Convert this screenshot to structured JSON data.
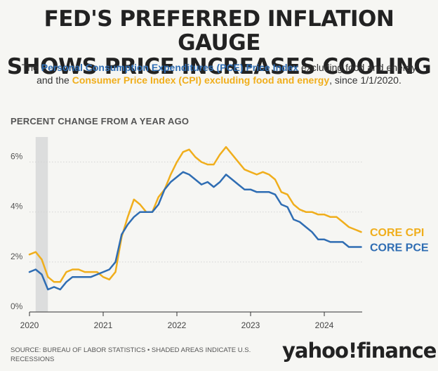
{
  "title": {
    "line1": "FED'S PREFERRED INFLATION GAUGE",
    "line2": "SHOWS PRICE INCREASES COOLING"
  },
  "subtitle": {
    "part1": "The ",
    "pce_name": "Personal Consumption Expenditures (PCE) Price Index",
    "part2": " excluding food and energy and the ",
    "cpi_name": "Consumer Price Index (CPI) excluding food and energy",
    "part3": ", since 1/1/2020."
  },
  "kicker": "PERCENT CHANGE FROM A YEAR AGO",
  "source": "SOURCE: BUREAU OF LABOR STATISTICS • SHADED AREAS INDICATE U.S. RECESSIONS",
  "logo": {
    "word1": "yahoo",
    "bang": "!",
    "word2": "finance"
  },
  "colors": {
    "cpi": "#f0ae1c",
    "pce": "#2f6db3",
    "recession": "#dcdddd",
    "grid": "#d4d4d4"
  },
  "chart_data": {
    "type": "line",
    "ylim": [
      0,
      7
    ],
    "yticks": [
      "0%",
      "2%",
      "4%",
      "6%"
    ],
    "xticks": [
      "2020",
      "2021",
      "2022",
      "2023",
      "2024"
    ],
    "recession": [
      "2020-02",
      "2020-04"
    ],
    "series": [
      {
        "name": "CORE CPI",
        "color": "#f0ae1c",
        "values": [
          [
            "2020-01",
            2.3
          ],
          [
            "2020-02",
            2.4
          ],
          [
            "2020-03",
            2.1
          ],
          [
            "2020-04",
            1.4
          ],
          [
            "2020-05",
            1.2
          ],
          [
            "2020-06",
            1.2
          ],
          [
            "2020-07",
            1.6
          ],
          [
            "2020-08",
            1.7
          ],
          [
            "2020-09",
            1.7
          ],
          [
            "2020-10",
            1.6
          ],
          [
            "2020-11",
            1.6
          ],
          [
            "2020-12",
            1.6
          ],
          [
            "2021-01",
            1.4
          ],
          [
            "2021-02",
            1.3
          ],
          [
            "2021-03",
            1.6
          ],
          [
            "2021-04",
            3.0
          ],
          [
            "2021-05",
            3.8
          ],
          [
            "2021-06",
            4.5
          ],
          [
            "2021-07",
            4.3
          ],
          [
            "2021-08",
            4.0
          ],
          [
            "2021-09",
            4.0
          ],
          [
            "2021-10",
            4.6
          ],
          [
            "2021-11",
            4.9
          ],
          [
            "2021-12",
            5.5
          ],
          [
            "2022-01",
            6.0
          ],
          [
            "2022-02",
            6.4
          ],
          [
            "2022-03",
            6.5
          ],
          [
            "2022-04",
            6.2
          ],
          [
            "2022-05",
            6.0
          ],
          [
            "2022-06",
            5.9
          ],
          [
            "2022-07",
            5.9
          ],
          [
            "2022-08",
            6.3
          ],
          [
            "2022-09",
            6.6
          ],
          [
            "2022-10",
            6.3
          ],
          [
            "2022-11",
            6.0
          ],
          [
            "2022-12",
            5.7
          ],
          [
            "2023-01",
            5.6
          ],
          [
            "2023-02",
            5.5
          ],
          [
            "2023-03",
            5.6
          ],
          [
            "2023-04",
            5.5
          ],
          [
            "2023-05",
            5.3
          ],
          [
            "2023-06",
            4.8
          ],
          [
            "2023-07",
            4.7
          ],
          [
            "2023-08",
            4.3
          ],
          [
            "2023-09",
            4.1
          ],
          [
            "2023-10",
            4.0
          ],
          [
            "2023-11",
            4.0
          ],
          [
            "2023-12",
            3.9
          ],
          [
            "2024-01",
            3.9
          ],
          [
            "2024-02",
            3.8
          ],
          [
            "2024-03",
            3.8
          ],
          [
            "2024-04",
            3.6
          ],
          [
            "2024-05",
            3.4
          ],
          [
            "2024-06",
            3.3
          ],
          [
            "2024-07",
            3.2
          ]
        ]
      },
      {
        "name": "CORE PCE",
        "color": "#2f6db3",
        "values": [
          [
            "2020-01",
            1.6
          ],
          [
            "2020-02",
            1.7
          ],
          [
            "2020-03",
            1.5
          ],
          [
            "2020-04",
            0.9
          ],
          [
            "2020-05",
            1.0
          ],
          [
            "2020-06",
            0.9
          ],
          [
            "2020-07",
            1.2
          ],
          [
            "2020-08",
            1.4
          ],
          [
            "2020-09",
            1.4
          ],
          [
            "2020-10",
            1.4
          ],
          [
            "2020-11",
            1.4
          ],
          [
            "2020-12",
            1.5
          ],
          [
            "2021-01",
            1.6
          ],
          [
            "2021-02",
            1.7
          ],
          [
            "2021-03",
            2.0
          ],
          [
            "2021-04",
            3.1
          ],
          [
            "2021-05",
            3.5
          ],
          [
            "2021-06",
            3.8
          ],
          [
            "2021-07",
            4.0
          ],
          [
            "2021-08",
            4.0
          ],
          [
            "2021-09",
            4.0
          ],
          [
            "2021-10",
            4.3
          ],
          [
            "2021-11",
            4.9
          ],
          [
            "2021-12",
            5.2
          ],
          [
            "2022-01",
            5.4
          ],
          [
            "2022-02",
            5.6
          ],
          [
            "2022-03",
            5.5
          ],
          [
            "2022-04",
            5.3
          ],
          [
            "2022-05",
            5.1
          ],
          [
            "2022-06",
            5.2
          ],
          [
            "2022-07",
            5.0
          ],
          [
            "2022-08",
            5.2
          ],
          [
            "2022-09",
            5.5
          ],
          [
            "2022-10",
            5.3
          ],
          [
            "2022-11",
            5.1
          ],
          [
            "2022-12",
            4.9
          ],
          [
            "2023-01",
            4.9
          ],
          [
            "2023-02",
            4.8
          ],
          [
            "2023-03",
            4.8
          ],
          [
            "2023-04",
            4.8
          ],
          [
            "2023-05",
            4.7
          ],
          [
            "2023-06",
            4.3
          ],
          [
            "2023-07",
            4.2
          ],
          [
            "2023-08",
            3.7
          ],
          [
            "2023-09",
            3.6
          ],
          [
            "2023-10",
            3.4
          ],
          [
            "2023-11",
            3.2
          ],
          [
            "2023-12",
            2.9
          ],
          [
            "2024-01",
            2.9
          ],
          [
            "2024-02",
            2.8
          ],
          [
            "2024-03",
            2.8
          ],
          [
            "2024-04",
            2.8
          ],
          [
            "2024-05",
            2.6
          ],
          [
            "2024-06",
            2.6
          ],
          [
            "2024-07",
            2.6
          ]
        ]
      }
    ]
  }
}
